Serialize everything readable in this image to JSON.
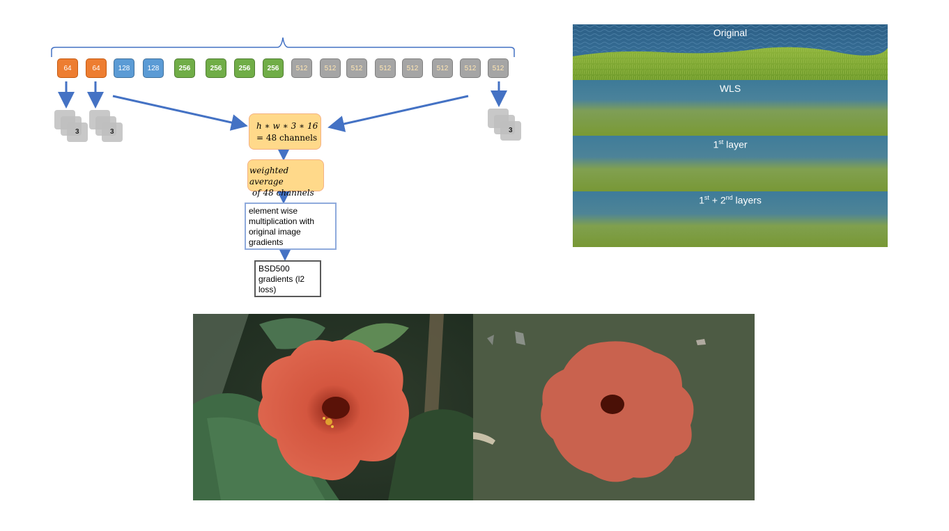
{
  "layers": [
    "64",
    "64",
    "128",
    "128",
    "256",
    "256",
    "256",
    "256",
    "512",
    "512",
    "512",
    "512",
    "512",
    "512",
    "512",
    "512"
  ],
  "layer_colors": {
    "orange": "#ed7d31",
    "blue": "#5b9bd5",
    "green": "#70ad47",
    "gray": "#a5a5a5"
  },
  "side_output_label": "3",
  "flow": {
    "concat_line1": "h ∗ w ∗ 3 ∗ 16",
    "concat_line2": "= 48 channels",
    "average_line1": "weighted average",
    "average_line2": "of 48 channels",
    "multiply_line1": "element wise",
    "multiply_line2": "multiplication with",
    "multiply_line3": "original image",
    "multiply_line4": "gradients",
    "loss_line1": "BSD500",
    "loss_line2": "gradients (l2",
    "loss_line3": "loss)"
  },
  "strips": {
    "original": "Original",
    "wls": "WLS",
    "first_prefix": "1",
    "first_sup": "st",
    "first_suffix": " layer",
    "both_prefix": "1",
    "both_sup1": "st",
    "both_mid": " + 2",
    "both_sup2": "nd",
    "both_suffix": " layers"
  }
}
